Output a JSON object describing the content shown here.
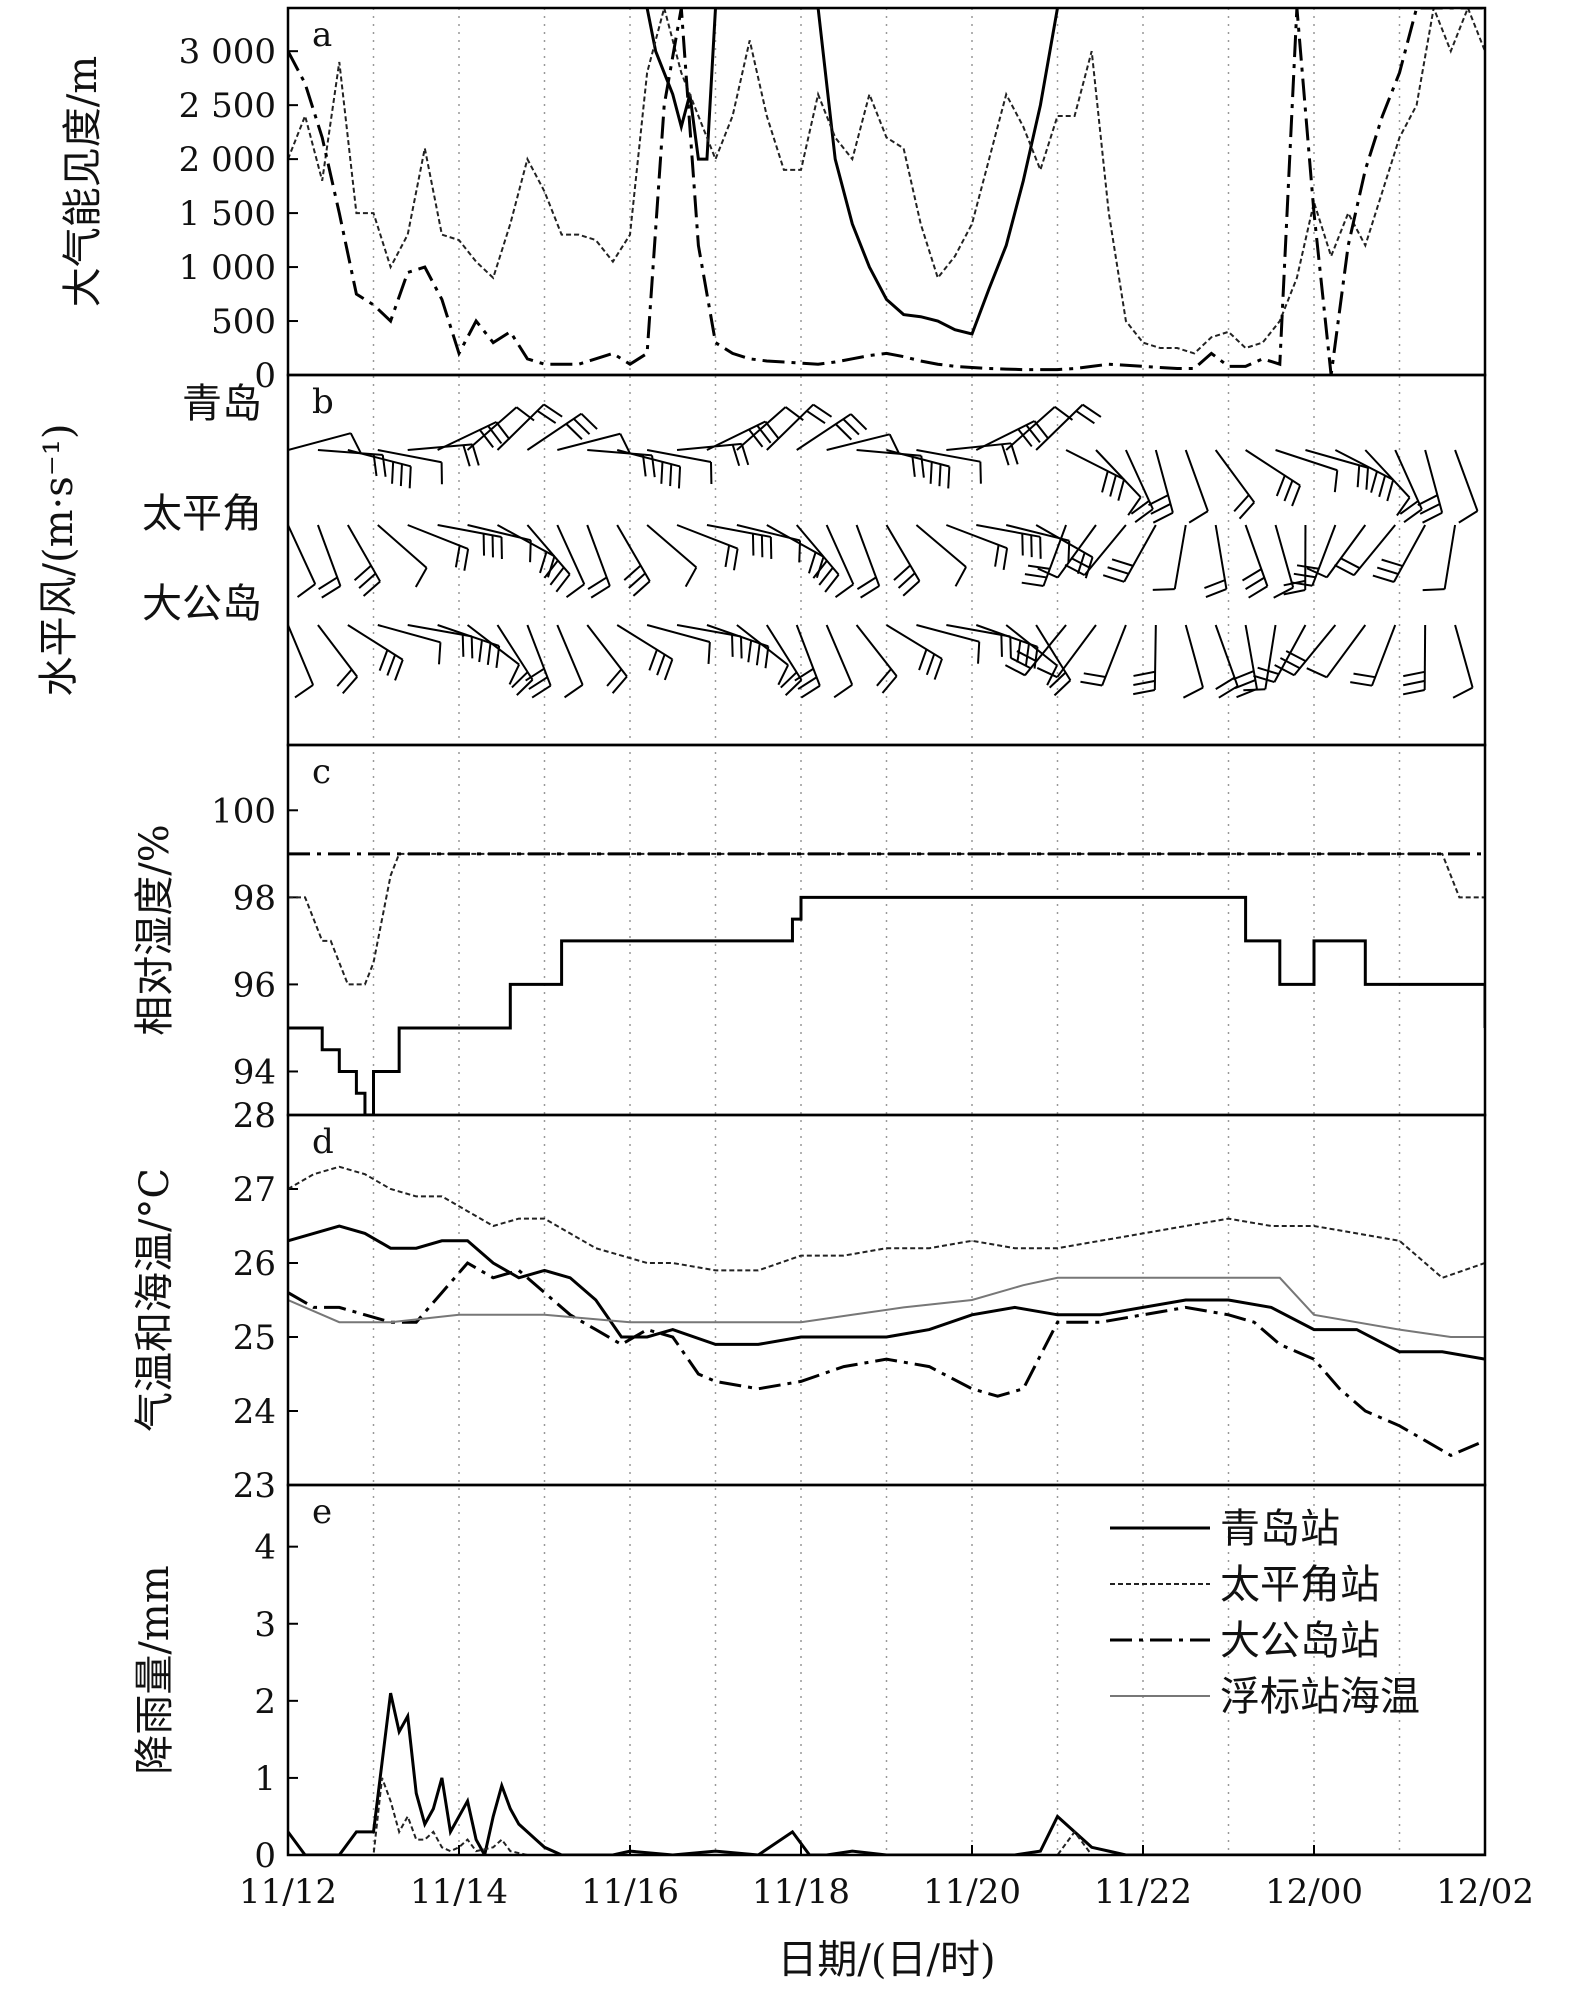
{
  "chart_data": [
    {
      "panel": "a",
      "type": "line",
      "ylabel": "大气能见度/m",
      "ylim": [
        0,
        3400
      ],
      "yticks": [
        0,
        500,
        1000,
        1500,
        2000,
        2500,
        3000
      ],
      "ytick_labels": [
        "0",
        "500",
        "1 000",
        "1 500",
        "2 000",
        "2 500",
        "3 000"
      ],
      "series": [
        {
          "name": "青岛站",
          "style": "solid",
          "x": [
            4.2,
            4.3,
            4.4,
            4.5,
            4.6,
            4.7,
            4.8,
            4.9,
            5.0,
            5.2,
            5.4,
            5.6,
            5.8,
            6.0,
            6.2,
            6.4,
            6.6,
            6.8,
            7.0,
            7.2,
            7.4,
            7.6,
            7.8,
            8.0,
            8.2,
            8.4,
            8.6,
            8.8,
            9.0
          ],
          "y": [
            3400,
            3000,
            2800,
            2600,
            2300,
            2600,
            2000,
            2000,
            3400,
            3400,
            3400,
            3400,
            3400,
            3400,
            3400,
            2000,
            1400,
            1000,
            700,
            560,
            540,
            500,
            420,
            380,
            800,
            1200,
            1800,
            2500,
            3400
          ]
        },
        {
          "name": "太平角站",
          "style": "dashed",
          "x": [
            0,
            0.2,
            0.4,
            0.6,
            0.8,
            1.0,
            1.2,
            1.4,
            1.6,
            1.8,
            2.0,
            2.2,
            2.4,
            2.6,
            2.8,
            3.0,
            3.2,
            3.4,
            3.6,
            3.8,
            4.0,
            4.2,
            4.4,
            4.6,
            4.8,
            5.0,
            5.2,
            5.4,
            5.6,
            5.8,
            6.0,
            6.2,
            6.4,
            6.6,
            6.8,
            7.0,
            7.2,
            7.4,
            7.6,
            7.8,
            8.0,
            8.2,
            8.4,
            8.6,
            8.8,
            9.0,
            9.2,
            9.4,
            9.6,
            9.8,
            10.0,
            10.2,
            10.4,
            10.6,
            10.8,
            11.0,
            11.2,
            11.4,
            11.6,
            11.8,
            12.0,
            12.2,
            12.4,
            12.6,
            12.8,
            13.0,
            13.2,
            13.4,
            13.6,
            13.8,
            14.0
          ],
          "y": [
            2000,
            2400,
            1800,
            2900,
            1500,
            1500,
            1000,
            1300,
            2100,
            1300,
            1250,
            1050,
            900,
            1400,
            2000,
            1700,
            1300,
            1300,
            1250,
            1050,
            1300,
            2800,
            3400,
            2800,
            2400,
            2000,
            2400,
            3100,
            2400,
            1900,
            1900,
            2600,
            2200,
            2000,
            2600,
            2200,
            2100,
            1400,
            900,
            1100,
            1400,
            2000,
            2600,
            2300,
            1900,
            2400,
            2400,
            3000,
            1500,
            500,
            300,
            250,
            250,
            200,
            350,
            400,
            250,
            300,
            500,
            900,
            1600,
            1100,
            1500,
            1200,
            1700,
            2200,
            2500,
            3400,
            3000,
            3400,
            3000
          ]
        },
        {
          "name": "大公岛站",
          "style": "dashdot",
          "x": [
            0,
            0.2,
            0.4,
            0.6,
            0.8,
            1.0,
            1.2,
            1.4,
            1.6,
            1.8,
            2.0,
            2.2,
            2.4,
            2.6,
            2.8,
            3.0,
            3.2,
            3.4,
            3.6,
            3.8,
            4.0,
            4.2,
            4.4,
            4.6,
            4.8,
            5.0,
            5.2,
            5.4,
            5.6,
            5.8,
            6.0,
            6.2,
            6.4,
            6.6,
            6.8,
            7.0,
            7.2,
            7.4,
            7.6,
            7.8,
            8.0,
            8.2,
            8.4,
            8.6,
            8.8,
            9.0,
            9.2,
            9.4,
            9.6,
            9.8,
            10.0,
            10.2,
            10.4,
            10.6,
            10.8,
            11.0,
            11.2,
            11.4,
            11.6,
            11.8,
            12.0,
            12.2,
            12.4,
            12.6,
            12.8,
            13.0,
            13.2,
            13.4,
            13.6,
            13.8,
            14.0
          ],
          "y": [
            3000,
            2700,
            2200,
            1500,
            750,
            650,
            500,
            950,
            1000,
            700,
            200,
            500,
            300,
            400,
            150,
            100,
            100,
            100,
            150,
            200,
            100,
            200,
            2500,
            3400,
            1200,
            300,
            200,
            150,
            130,
            120,
            110,
            100,
            120,
            150,
            180,
            200,
            170,
            130,
            100,
            80,
            70,
            60,
            55,
            50,
            50,
            50,
            60,
            80,
            100,
            90,
            80,
            70,
            60,
            60,
            200,
            80,
            80,
            150,
            100,
            3400,
            1500,
            0,
            1200,
            1900,
            2400,
            2800,
            3400,
            3400,
            3400,
            3400,
            3400
          ]
        }
      ]
    },
    {
      "panel": "b",
      "type": "wind-barb",
      "ylabel": "水平风/(m·s⁻¹)",
      "stations": [
        "青岛",
        "太平角",
        "大公岛"
      ]
    },
    {
      "panel": "c",
      "type": "line",
      "ylabel": "相对湿度/%",
      "ylim": [
        93,
        101.5
      ],
      "yticks": [
        94,
        96,
        98,
        100
      ],
      "series": [
        {
          "name": "青岛站",
          "style": "solid",
          "step": true,
          "x": [
            0,
            0.4,
            0.6,
            0.8,
            0.9,
            1.0,
            1.3,
            2.0,
            2.5,
            2.6,
            3.0,
            3.2,
            3.6,
            4.0,
            4.4,
            4.9,
            5.6,
            5.9,
            6.0,
            7.0,
            8.0,
            9.0,
            10.0,
            11.0,
            11.2,
            11.4,
            11.6,
            11.8,
            12.0,
            12.4,
            12.6,
            12.8,
            13.0,
            13.4,
            13.6,
            14.0
          ],
          "y": [
            95,
            94.5,
            94,
            93.5,
            93,
            94,
            95,
            95,
            95,
            96,
            96,
            97,
            97,
            97,
            97,
            97,
            97,
            97.5,
            98,
            98,
            98,
            98,
            98,
            98,
            97,
            97,
            96,
            96,
            97,
            97,
            96,
            96,
            96,
            96,
            96,
            95
          ]
        },
        {
          "name": "太平角站",
          "style": "dashed",
          "x": [
            0,
            0.2,
            0.3,
            0.4,
            0.5,
            0.6,
            0.7,
            0.8,
            0.9,
            1.0,
            1.1,
            1.2,
            1.3,
            2.0,
            13.5,
            13.7,
            14.0
          ],
          "y": [
            98,
            98,
            97.5,
            97,
            97,
            96.5,
            96,
            96,
            96,
            96.5,
            97.5,
            98.5,
            99,
            99,
            99,
            98,
            98
          ]
        },
        {
          "name": "大公岛站",
          "style": "dashdot",
          "x": [
            0,
            14.0
          ],
          "y": [
            99,
            99
          ]
        }
      ]
    },
    {
      "panel": "d",
      "type": "line",
      "ylabel": "气温和海温/°C",
      "ylim": [
        23,
        28
      ],
      "yticks": [
        23,
        24,
        25,
        26,
        27,
        28
      ],
      "series": [
        {
          "name": "青岛站",
          "style": "solid",
          "x": [
            0,
            0.3,
            0.6,
            0.9,
            1.2,
            1.5,
            1.8,
            2.1,
            2.4,
            2.7,
            3.0,
            3.3,
            3.6,
            3.9,
            4.2,
            4.5,
            5.0,
            5.5,
            6.0,
            6.5,
            7.0,
            7.5,
            8.0,
            8.5,
            9.0,
            9.5,
            10.0,
            10.5,
            11.0,
            11.5,
            12.0,
            12.5,
            13.0,
            13.5,
            14.0
          ],
          "y": [
            26.3,
            26.4,
            26.5,
            26.4,
            26.2,
            26.2,
            26.3,
            26.3,
            26.0,
            25.8,
            25.9,
            25.8,
            25.5,
            25.0,
            25.0,
            25.1,
            24.9,
            24.9,
            25.0,
            25.0,
            25.0,
            25.1,
            25.3,
            25.4,
            25.3,
            25.3,
            25.4,
            25.5,
            25.5,
            25.4,
            25.1,
            25.1,
            24.8,
            24.8,
            24.7
          ]
        },
        {
          "name": "太平角站",
          "style": "dashed",
          "x": [
            0,
            0.3,
            0.6,
            0.9,
            1.2,
            1.5,
            1.8,
            2.1,
            2.4,
            2.7,
            3.0,
            3.3,
            3.6,
            3.9,
            4.2,
            4.5,
            5.0,
            5.5,
            6.0,
            6.5,
            7.0,
            7.5,
            8.0,
            8.5,
            9.0,
            9.5,
            10.0,
            10.5,
            11.0,
            11.5,
            12.0,
            12.5,
            13.0,
            13.5,
            14.0
          ],
          "y": [
            27.0,
            27.2,
            27.3,
            27.2,
            27.0,
            26.9,
            26.9,
            26.7,
            26.5,
            26.6,
            26.6,
            26.4,
            26.2,
            26.1,
            26.0,
            26.0,
            25.9,
            25.9,
            26.1,
            26.1,
            26.2,
            26.2,
            26.3,
            26.2,
            26.2,
            26.3,
            26.4,
            26.5,
            26.6,
            26.5,
            26.5,
            26.4,
            26.3,
            25.8,
            26.0
          ]
        },
        {
          "name": "大公岛站",
          "style": "dashdot",
          "x": [
            0,
            0.3,
            0.6,
            0.9,
            1.2,
            1.5,
            1.8,
            2.1,
            2.4,
            2.7,
            3.0,
            3.3,
            3.6,
            3.9,
            4.2,
            4.5,
            4.8,
            5.0,
            5.5,
            6.0,
            6.5,
            7.0,
            7.5,
            8.0,
            8.3,
            8.6,
            9.0,
            9.5,
            10.0,
            10.5,
            11.0,
            11.3,
            11.6,
            12.0,
            12.3,
            12.6,
            13.0,
            13.3,
            13.6,
            14.0
          ],
          "y": [
            25.6,
            25.4,
            25.4,
            25.3,
            25.2,
            25.2,
            25.6,
            26.0,
            25.8,
            25.9,
            25.6,
            25.3,
            25.1,
            24.9,
            25.1,
            25.0,
            24.5,
            24.4,
            24.3,
            24.4,
            24.6,
            24.7,
            24.6,
            24.3,
            24.2,
            24.3,
            25.2,
            25.2,
            25.3,
            25.4,
            25.3,
            25.2,
            24.9,
            24.7,
            24.3,
            24.0,
            23.8,
            23.6,
            23.4,
            23.6
          ]
        },
        {
          "name": "浮标站海温",
          "style": "thin-gray",
          "x": [
            0,
            0.6,
            1.2,
            2.0,
            3.0,
            4.0,
            5.0,
            6.0,
            6.6,
            7.2,
            8.0,
            8.6,
            9.0,
            10.0,
            11.0,
            11.6,
            12.0,
            13.0,
            13.6,
            14.0
          ],
          "y": [
            25.5,
            25.2,
            25.2,
            25.3,
            25.3,
            25.2,
            25.2,
            25.2,
            25.3,
            25.4,
            25.5,
            25.7,
            25.8,
            25.8,
            25.8,
            25.8,
            25.3,
            25.1,
            25.0,
            25.0
          ]
        }
      ]
    },
    {
      "panel": "e",
      "type": "line",
      "ylabel": "降雨量/mm",
      "ylim": [
        0,
        4.8
      ],
      "yticks": [
        0,
        1,
        2,
        3,
        4
      ],
      "x_tick_labels": [
        "11/12",
        "11/14",
        "11/16",
        "11/18",
        "11/20",
        "11/22",
        "12/00",
        "12/02"
      ],
      "xlabel": "日期/(日/时)",
      "series": [
        {
          "name": "青岛站",
          "style": "solid",
          "x": [
            0,
            0.2,
            0.4,
            0.6,
            0.8,
            1.0,
            1.1,
            1.2,
            1.3,
            1.4,
            1.5,
            1.6,
            1.7,
            1.8,
            1.9,
            2.0,
            2.1,
            2.2,
            2.3,
            2.4,
            2.5,
            2.6,
            2.7,
            2.8,
            2.9,
            3.0,
            3.2,
            3.4,
            3.6,
            3.8,
            4.0,
            4.5,
            5.0,
            5.5,
            5.9,
            6.1,
            6.3,
            6.6,
            7.0,
            8.0,
            8.5,
            8.8,
            9.0,
            9.2,
            9.4,
            9.6,
            9.8,
            10.0,
            11.0,
            12.0,
            13.0,
            14.0
          ],
          "y": [
            0.3,
            0,
            0,
            0,
            0.3,
            0.3,
            1.2,
            2.1,
            1.6,
            1.8,
            0.8,
            0.4,
            0.6,
            1.0,
            0.3,
            0.5,
            0.7,
            0.2,
            0,
            0.5,
            0.9,
            0.6,
            0.4,
            0.3,
            0.2,
            0.1,
            0,
            0,
            0,
            0,
            0.05,
            0,
            0.05,
            0,
            0.3,
            0,
            0,
            0.05,
            0,
            0,
            0,
            0.05,
            0.5,
            0.3,
            0.1,
            0.05,
            0,
            0,
            0,
            0,
            0,
            0
          ]
        },
        {
          "name": "太平角站",
          "style": "dashed",
          "x": [
            0,
            1.0,
            1.1,
            1.2,
            1.3,
            1.4,
            1.5,
            1.6,
            1.7,
            1.8,
            1.9,
            2.0,
            2.1,
            2.2,
            2.4,
            2.5,
            2.6,
            2.8,
            9.0,
            9.2,
            9.4,
            14.0
          ],
          "y": [
            0,
            0,
            1.0,
            0.7,
            0.3,
            0.5,
            0.2,
            0.2,
            0.3,
            0.1,
            0.05,
            0.1,
            0.2,
            0.05,
            0.1,
            0.2,
            0.05,
            0,
            0,
            0.3,
            0,
            0
          ]
        }
      ]
    }
  ],
  "legend": {
    "items": [
      {
        "label": "青岛站",
        "style": "solid"
      },
      {
        "label": "太平角站",
        "style": "dashed"
      },
      {
        "label": "大公岛站",
        "style": "dashdot"
      },
      {
        "label": "浮标站海温",
        "style": "thin-gray"
      }
    ]
  }
}
